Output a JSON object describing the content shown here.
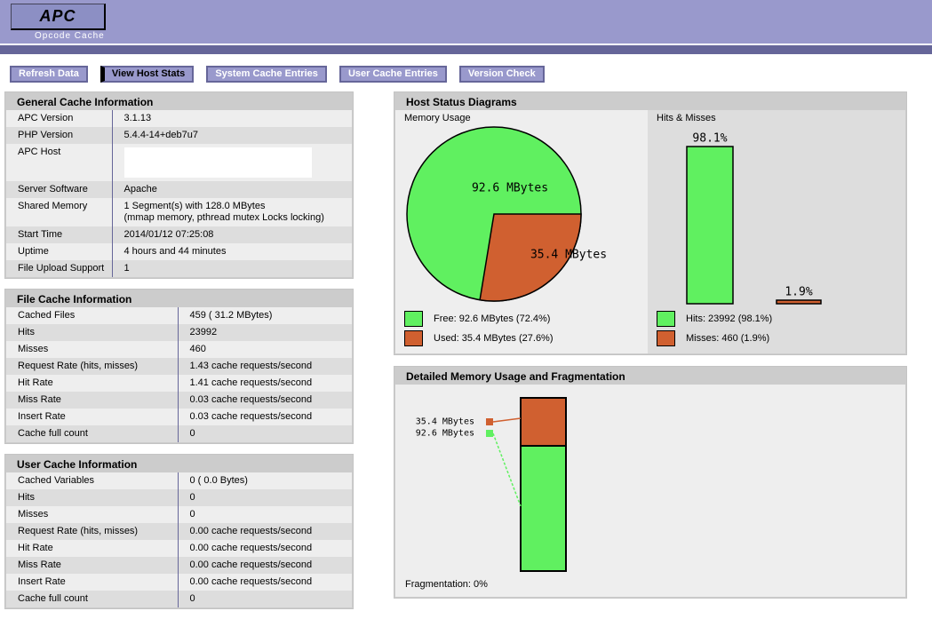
{
  "header": {
    "logo_text": "APC",
    "logo_subtitle": "Opcode Cache"
  },
  "nav": {
    "items": [
      {
        "label": "Refresh Data",
        "active": false
      },
      {
        "label": "View Host Stats",
        "active": true
      },
      {
        "label": "System Cache Entries",
        "active": false
      },
      {
        "label": "User Cache Entries",
        "active": false
      },
      {
        "label": "Version Check",
        "active": false
      }
    ]
  },
  "panels": {
    "general": {
      "title": "General Cache Information",
      "rows": [
        {
          "label": "APC Version",
          "value": "3.1.13"
        },
        {
          "label": "PHP Version",
          "value": "5.4.4-14+deb7u7"
        },
        {
          "label": "APC Host",
          "value": "",
          "redacted": true
        },
        {
          "label": "Server Software",
          "value": "Apache"
        },
        {
          "label": "Shared Memory",
          "lines": [
            "1 Segment(s) with 128.0 MBytes",
            "(mmap memory, pthread mutex Locks locking)"
          ]
        },
        {
          "label": "Start Time",
          "value": "2014/01/12 07:25:08"
        },
        {
          "label": "Uptime",
          "value": "4 hours and 44 minutes"
        },
        {
          "label": "File Upload Support",
          "value": "1"
        }
      ]
    },
    "file_cache": {
      "title": "File Cache Information",
      "rows": [
        {
          "label": "Cached Files",
          "value": "459 ( 31.2 MBytes)"
        },
        {
          "label": "Hits",
          "value": "23992"
        },
        {
          "label": "Misses",
          "value": "460"
        },
        {
          "label": "Request Rate (hits, misses)",
          "value": "1.43 cache requests/second"
        },
        {
          "label": "Hit Rate",
          "value": "1.41 cache requests/second"
        },
        {
          "label": "Miss Rate",
          "value": "0.03 cache requests/second"
        },
        {
          "label": "Insert Rate",
          "value": "0.03 cache requests/second"
        },
        {
          "label": "Cache full count",
          "value": "0"
        }
      ]
    },
    "user_cache": {
      "title": "User Cache Information",
      "rows": [
        {
          "label": "Cached Variables",
          "value": "0 ( 0.0 Bytes)"
        },
        {
          "label": "Hits",
          "value": "0"
        },
        {
          "label": "Misses",
          "value": "0"
        },
        {
          "label": "Request Rate (hits, misses)",
          "value": "0.00 cache requests/second"
        },
        {
          "label": "Hit Rate",
          "value": "0.00 cache requests/second"
        },
        {
          "label": "Miss Rate",
          "value": "0.00 cache requests/second"
        },
        {
          "label": "Insert Rate",
          "value": "0.00 cache requests/second"
        },
        {
          "label": "Cache full count",
          "value": "0"
        }
      ]
    },
    "host_status": {
      "title": "Host Status Diagrams",
      "memory_usage_title": "Memory Usage",
      "hits_misses_title": "Hits & Misses"
    },
    "detailed_memory": {
      "title": "Detailed Memory Usage and Fragmentation",
      "fragmentation": "Fragmentation: 0%"
    }
  },
  "colors": {
    "header_bg": "#9999cc",
    "header_bar": "#666699",
    "logo_bg": "#8c8fc4",
    "panel_bg": "#cccccc",
    "row_even": "#eeeeee",
    "row_odd": "#dddddd",
    "divider": "#666699",
    "free_green": "#60F060",
    "used_red": "#D06030"
  },
  "chart_data": [
    {
      "type": "pie",
      "title": "Memory Usage",
      "slices": [
        {
          "label": "Free",
          "value_mbytes": 92.6,
          "percent": 72.4,
          "color": "#60F060",
          "data_label": "92.6 MBytes",
          "legend": "Free: 92.6 MBytes (72.4%)"
        },
        {
          "label": "Used",
          "value_mbytes": 35.4,
          "percent": 27.6,
          "color": "#D06030",
          "data_label": "35.4 MBytes",
          "legend": "Used: 35.4 MBytes (27.6%)"
        }
      ]
    },
    {
      "type": "bar",
      "title": "Hits & Misses",
      "categories": [
        "Hits",
        "Misses"
      ],
      "values": [
        23992,
        460
      ],
      "percents": [
        98.1,
        1.9
      ],
      "bar_labels": [
        "98.1%",
        "1.9%"
      ],
      "colors": [
        "#60F060",
        "#D06030"
      ],
      "legend": [
        "Hits: 23992 (98.1%)",
        "Misses: 460 (1.9%)"
      ],
      "ylim": [
        0,
        100
      ]
    },
    {
      "type": "stacked-bar",
      "title": "Detailed Memory Usage and Fragmentation",
      "segments": [
        {
          "label": "Used",
          "mbytes_label": "35.4 MBytes",
          "percent": 27.6,
          "color": "#D06030"
        },
        {
          "label": "Free",
          "mbytes_label": "92.6 MBytes",
          "percent": 72.4,
          "color": "#60F060"
        }
      ],
      "footer": "Fragmentation: 0%"
    }
  ]
}
